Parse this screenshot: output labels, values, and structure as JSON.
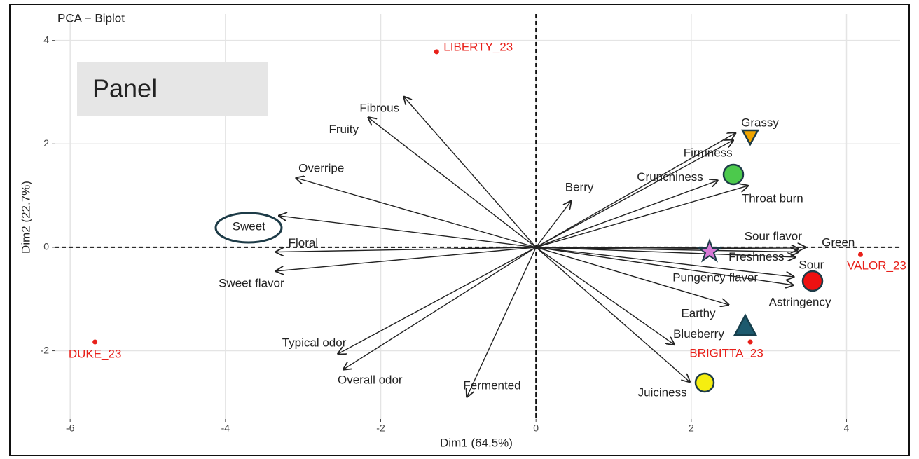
{
  "chart_data": {
    "type": "biplot",
    "title": "PCA − Biplot",
    "annotation": "Panel",
    "xlabel": "Dim1 (64.5%)",
    "ylabel": "Dim2 (22.7%)",
    "xlim": [
      -6.2,
      4.69
    ],
    "ylim": [
      -3.32,
      4.51
    ],
    "xticks": [
      -6,
      -4,
      -2,
      0,
      2,
      4
    ],
    "yticks": [
      -2,
      0,
      2,
      4
    ],
    "grid": true,
    "variables": {
      "color": "#222222",
      "names": [
        "Fibrous",
        "Fruity",
        "Overripe",
        "Sweet",
        "Floral",
        "Sweet flavor",
        "Typical odor",
        "Overall odor",
        "Fermented",
        "Berry",
        "Grassy",
        "Firmness",
        "Crunchiness",
        "Throat burn",
        "Sour flavor",
        "Green",
        "Freshness",
        "Sour",
        "Pungency flavor",
        "Astringency",
        "Earthy",
        "Blueberry",
        "Juiciness"
      ],
      "x": [
        -1.7,
        -2.16,
        -3.09,
        -3.31,
        -3.35,
        -3.35,
        -2.55,
        -2.48,
        -0.89,
        0.45,
        2.57,
        2.54,
        2.34,
        2.73,
        3.38,
        3.47,
        3.38,
        3.34,
        3.32,
        3.31,
        2.48,
        1.78,
        1.98
      ],
      "y": [
        2.91,
        2.51,
        1.34,
        0.61,
        -0.09,
        -0.46,
        -2.06,
        -2.36,
        -2.89,
        0.89,
        2.21,
        2.07,
        1.29,
        1.19,
        -0.03,
        0,
        -0.09,
        -0.19,
        -0.57,
        -0.73,
        -1.11,
        -1.88,
        -2.6
      ]
    },
    "individuals": {
      "color": "#e8201a",
      "names": [
        "LIBERTY_23",
        "DUKE_23",
        "VALOR_23",
        "BRIGITTA_23"
      ],
      "x": [
        -1.28,
        -5.68,
        4.18,
        2.76
      ],
      "y": [
        3.78,
        -1.83,
        -0.14,
        -1.83
      ]
    }
  }
}
